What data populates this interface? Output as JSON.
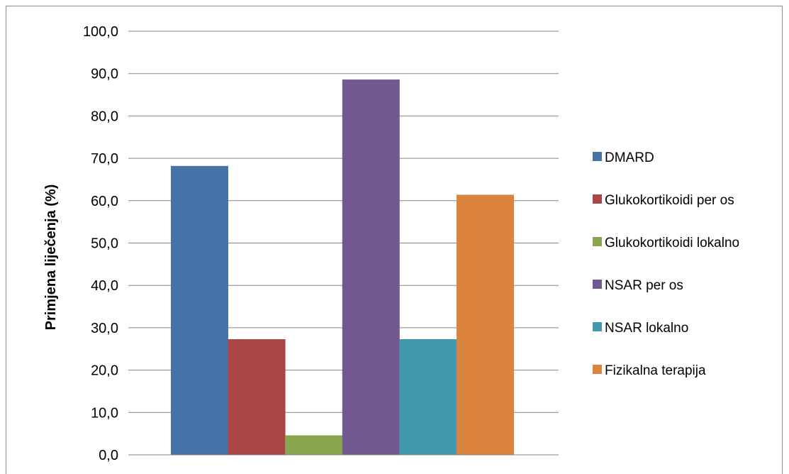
{
  "chart_data": {
    "type": "bar",
    "title": "",
    "xlabel": "",
    "ylabel": "Primjena liječenja (%)",
    "ylim": [
      0,
      100
    ],
    "yticks": [
      0,
      10,
      20,
      30,
      40,
      50,
      60,
      70,
      80,
      90,
      100
    ],
    "ytick_labels": [
      "0,0",
      "10,0",
      "20,0",
      "30,0",
      "40,0",
      "50,0",
      "60,0",
      "70,0",
      "80,0",
      "90,0",
      "100,0"
    ],
    "grid": true,
    "legend_position": "right",
    "series": [
      {
        "name": "DMARD",
        "value": 68.2,
        "color": "#4572A7"
      },
      {
        "name": "Glukokortikoidi per os",
        "value": 27.3,
        "color": "#AA4643"
      },
      {
        "name": "Glukokortikoidi lokalno",
        "value": 4.6,
        "color": "#89A54E"
      },
      {
        "name": "NSAR per os",
        "value": 88.6,
        "color": "#71588F"
      },
      {
        "name": "NSAR lokalno",
        "value": 27.3,
        "color": "#4198AF"
      },
      {
        "name": "Fizikalna terapija",
        "value": 61.4,
        "color": "#DB843D"
      }
    ]
  }
}
